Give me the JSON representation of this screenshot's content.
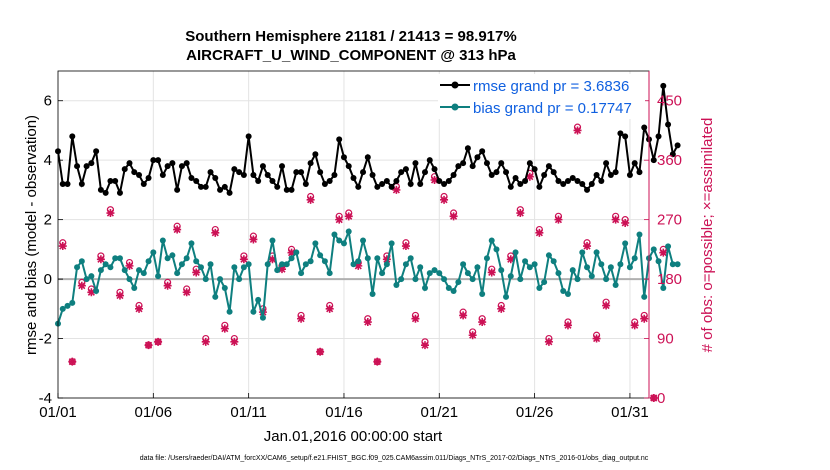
{
  "chart_data": {
    "type": "line",
    "title": "Southern Hemisphere 21181 / 21413 = 98.917%",
    "subtitle": "AIRCRAFT_U_WIND_COMPONENT @ 313 hPa",
    "xlabel": "Jan.01,2016 00:00:00 start",
    "ylabel": "rmse and bias (model - observation)",
    "y2label": "# of obs: o=possible; ×=assimilated",
    "footnote": "data file: /Users/raeder/DAI/ATM_forcXX/CAM6_setup/f.e21.FHIST_BGC.f09_025.CAM6assim.011/Diags_NTrS_2017-02/Diags_NTrS_2016-01/obs_diag_output.nc",
    "xlim": [
      0,
      31
    ],
    "ylim": [
      -4,
      7
    ],
    "y2lim": [
      0,
      495
    ],
    "xticks": [
      0,
      5,
      10,
      15,
      20,
      25,
      30
    ],
    "xtick_labels": [
      "01/01",
      "01/06",
      "01/11",
      "01/16",
      "01/21",
      "01/26",
      "01/31"
    ],
    "yticks": [
      -4,
      -2,
      0,
      2,
      4,
      6
    ],
    "ytick_labels": [
      "-4",
      "-2",
      "0",
      "2",
      "4",
      "6"
    ],
    "y2ticks": [
      0,
      90,
      180,
      270,
      360,
      450
    ],
    "y2tick_labels": [
      "0",
      "90",
      "180",
      "270",
      "360",
      "450"
    ],
    "grid": true,
    "legend_position": "top-right",
    "colors": {
      "rmse": "#000000",
      "bias": "#0e7f7f",
      "obs": "#cc1155",
      "zero_line": "#b0b0b0",
      "legend_text": "#1060e0"
    },
    "series": [
      {
        "name": "rmse grand pr = 3.6836",
        "legend_label": "rmse grand pr = 3.6836",
        "axis": "left",
        "step": 0.25,
        "values": [
          4.3,
          3.2,
          3.2,
          4.8,
          3.8,
          3.2,
          3.8,
          3.9,
          4.3,
          3.0,
          2.9,
          3.3,
          3.3,
          2.9,
          3.7,
          3.9,
          3.6,
          3.5,
          3.2,
          3.4,
          4.0,
          4.0,
          3.5,
          3.8,
          3.9,
          3.0,
          3.8,
          3.9,
          3.4,
          3.3,
          3.1,
          3.1,
          3.6,
          3.4,
          3.0,
          3.1,
          2.9,
          3.7,
          3.6,
          3.5,
          4.8,
          3.5,
          3.3,
          3.8,
          3.5,
          3.3,
          3.1,
          3.8,
          3.0,
          3.0,
          3.6,
          3.6,
          3.2,
          3.9,
          4.2,
          3.6,
          3.2,
          3.3,
          3.5,
          4.7,
          4.1,
          3.8,
          3.4,
          3.1,
          3.6,
          4.1,
          3.5,
          3.1,
          3.2,
          3.3,
          3.1,
          3.3,
          3.6,
          3.7,
          3.2,
          3.9,
          3.2,
          3.6,
          4.0,
          3.7,
          3.3,
          3.2,
          3.3,
          3.5,
          3.8,
          3.9,
          4.4,
          3.8,
          4.1,
          4.3,
          3.9,
          3.5,
          3.6,
          3.9,
          3.6,
          3.1,
          3.4,
          3.2,
          3.3,
          3.9,
          3.7,
          3.1,
          3.5,
          3.8,
          3.6,
          3.3,
          3.2,
          3.3,
          3.4,
          3.3,
          3.2,
          3.0,
          3.2,
          3.5,
          3.3,
          3.9,
          3.5,
          3.6,
          4.9,
          4.8,
          3.5,
          3.9,
          3.6,
          5.1,
          4.7,
          4.0,
          4.8,
          6.5,
          5.2,
          4.2,
          4.5
        ]
      },
      {
        "name": "bias grand pr = 0.17747",
        "legend_label": "bias grand pr = 0.17747",
        "axis": "left",
        "step": 0.25,
        "values": [
          -1.5,
          -1.0,
          -0.9,
          -0.8,
          0.4,
          0.6,
          0.0,
          0.1,
          -0.4,
          0.3,
          0.5,
          0.4,
          0.7,
          0.7,
          0.3,
          0.0,
          -0.3,
          0.3,
          0.2,
          0.6,
          0.9,
          0.1,
          1.3,
          0.7,
          0.8,
          0.2,
          0.5,
          0.7,
          1.2,
          0.6,
          0.4,
          0.0,
          0.5,
          -0.6,
          0.0,
          -0.3,
          -1.1,
          0.4,
          0.0,
          0.4,
          0.5,
          -1.1,
          -0.7,
          -1.3,
          0.5,
          1.3,
          0.3,
          0.5,
          0.5,
          0.7,
          0.9,
          0.2,
          0.5,
          0.6,
          1.2,
          0.8,
          0.6,
          0.2,
          1.5,
          1.3,
          1.2,
          1.6,
          0.5,
          0.6,
          1.3,
          0.7,
          -0.5,
          0.7,
          0.2,
          0.5,
          1.2,
          -0.2,
          0.0,
          0.5,
          0.7,
          0.0,
          0.4,
          -0.3,
          0.2,
          0.3,
          0.2,
          0.0,
          -0.3,
          -0.4,
          -0.1,
          0.5,
          0.2,
          0.0,
          0.4,
          -0.5,
          0.7,
          1.3,
          1.0,
          0.3,
          -0.6,
          0.1,
          0.9,
          0.0,
          0.6,
          0.4,
          0.5,
          -0.3,
          -0.1,
          0.8,
          0.6,
          0.2,
          -0.4,
          -0.5,
          0.3,
          0.0,
          0.9,
          0.4,
          0.1,
          0.9,
          0.5,
          0.0,
          0.4,
          -0.2,
          0.5,
          1.2,
          0.4,
          0.7,
          1.5,
          -0.6,
          0.7,
          1.0,
          0.6,
          -0.3,
          1.1,
          0.5,
          0.5
        ]
      },
      {
        "name": "obs possible",
        "axis": "right",
        "marker": "circle",
        "step": 0.5,
        "values": [
          235,
          55,
          175,
          165,
          215,
          285,
          160,
          205,
          140,
          80,
          85,
          175,
          260,
          165,
          195,
          90,
          255,
          110,
          90,
          215,
          245,
          135,
          215,
          200,
          225,
          125,
          305,
          70,
          140,
          275,
          280,
          205,
          120,
          55,
          215,
          320,
          235,
          125,
          85,
          335,
          305,
          280,
          130,
          100,
          120,
          195,
          140,
          215,
          285,
          340,
          255,
          90,
          275,
          115,
          410,
          235,
          95,
          145,
          275,
          270,
          115,
          125,
          0,
          225
        ]
      },
      {
        "name": "obs assimilated",
        "axis": "right",
        "marker": "x",
        "step": 0.5,
        "values": [
          230,
          55,
          170,
          160,
          210,
          280,
          155,
          200,
          135,
          80,
          85,
          170,
          255,
          160,
          190,
          85,
          250,
          105,
          85,
          210,
          240,
          130,
          210,
          195,
          220,
          120,
          300,
          70,
          135,
          270,
          275,
          200,
          115,
          55,
          210,
          315,
          230,
          120,
          80,
          330,
          300,
          275,
          125,
          95,
          115,
          190,
          135,
          210,
          280,
          335,
          250,
          85,
          270,
          110,
          405,
          230,
          90,
          140,
          270,
          265,
          110,
          120,
          0,
          220
        ]
      }
    ]
  }
}
